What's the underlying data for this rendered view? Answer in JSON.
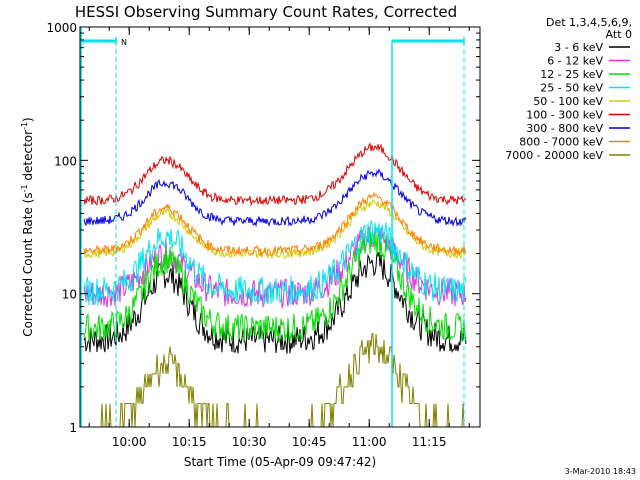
{
  "chart_data": {
    "type": "line",
    "title": "HESSI Observing Summary Count Rates, Corrected",
    "xlabel": "Start Time (05-Apr-09 09:47:42)",
    "ylabel_main": "Corrected Count Rate (s",
    "ylabel_sup1": "-1",
    "ylabel_mid": " detector",
    "ylabel_sup2": "-1",
    "ylabel_end": ")",
    "timestamp": "3-Mar-2010 18:43",
    "y_scale": "log",
    "ylim": [
      1,
      1000
    ],
    "x_unit": "minutes after 09:47:42",
    "xlim": [
      0,
      100
    ],
    "x_ticks": [
      {
        "label": "10:00",
        "value": 12.3
      },
      {
        "label": "10:15",
        "value": 27.3
      },
      {
        "label": "10:30",
        "value": 42.3
      },
      {
        "label": "10:45",
        "value": 57.3
      },
      {
        "label": "11:00",
        "value": 72.3
      },
      {
        "label": "11:15",
        "value": 87.3
      }
    ],
    "y_ticks": [
      {
        "label": "1",
        "value": 1
      },
      {
        "label": "10",
        "value": 10
      },
      {
        "label": "100",
        "value": 100
      },
      {
        "label": "1000",
        "value": 1000
      }
    ],
    "legend": {
      "header_line1": "Det 1,3,4,5,6,9,",
      "header_line2": "Att 0",
      "placement": "right"
    },
    "night_marker": {
      "label": "N",
      "color": "#00e5ee"
    },
    "series": [
      {
        "name": "3 - 6 keV",
        "color": "#000000",
        "base": 4.5,
        "peak1": 14,
        "peak2": 17
      },
      {
        "name": "6 - 12 keV",
        "color": "#e030e0",
        "base": 10,
        "peak1": 20,
        "peak2": 27
      },
      {
        "name": "12 - 25 keV",
        "color": "#00e000",
        "base": 5.5,
        "peak1": 18,
        "peak2": 25
      },
      {
        "name": "25 - 50 keV",
        "color": "#00e5ee",
        "base": 10.5,
        "peak1": 27,
        "peak2": 30
      },
      {
        "name": "50 - 100 keV",
        "color": "#d8c800",
        "base": 20,
        "peak1": 40,
        "peak2": 48
      },
      {
        "name": "100 - 300 keV",
        "color": "#e00000",
        "base": 50,
        "peak1": 100,
        "peak2": 125
      },
      {
        "name": "300 - 800 keV",
        "color": "#0000e0",
        "base": 35,
        "peak1": 68,
        "peak2": 80
      },
      {
        "name": "800 - 7000 keV",
        "color": "#ff8000",
        "base": 21,
        "peak1": 44,
        "peak2": 53
      },
      {
        "name": "7000 - 20000 keV",
        "color": "#808000",
        "base": 1,
        "peak1": 3,
        "peak2": 4
      }
    ]
  }
}
